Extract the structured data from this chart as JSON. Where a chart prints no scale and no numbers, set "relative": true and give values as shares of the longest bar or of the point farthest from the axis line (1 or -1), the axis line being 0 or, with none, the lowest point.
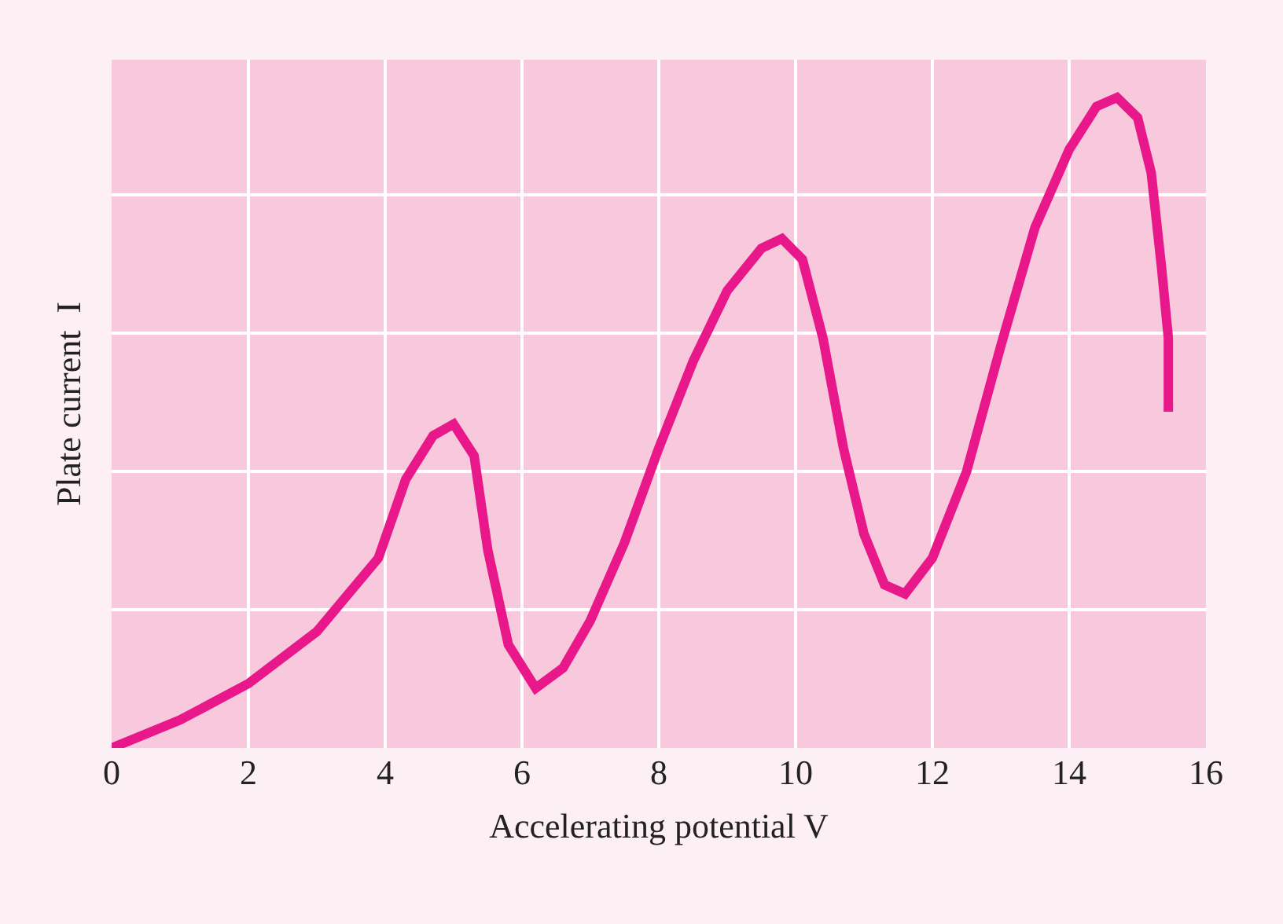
{
  "chart_data": {
    "type": "line",
    "xlabel": "Accelerating potential V",
    "ylabel": "Plate current  I",
    "relative": true,
    "grid": true,
    "xlim": [
      0,
      16
    ],
    "xticks": [
      0,
      2,
      4,
      6,
      8,
      10,
      12,
      14,
      16
    ],
    "series": [
      {
        "color": "#e8178a",
        "x": [
          0,
          1,
          2,
          3,
          3.9,
          4.3,
          4.7,
          5.0,
          5.3,
          5.5,
          5.8,
          6.2,
          6.6,
          7.0,
          7.5,
          8.0,
          8.5,
          9.0,
          9.5,
          9.8,
          10.1,
          10.4,
          10.7,
          11.0,
          11.3,
          11.6,
          12.0,
          12.5,
          13.0,
          13.5,
          14.0,
          14.4,
          14.7,
          15.0,
          15.2,
          15.35,
          15.45,
          15.45
        ],
        "values": [
          0,
          0.043,
          0.099,
          0.179,
          0.292,
          0.413,
          0.48,
          0.498,
          0.449,
          0.304,
          0.159,
          0.092,
          0.123,
          0.196,
          0.316,
          0.461,
          0.594,
          0.703,
          0.768,
          0.783,
          0.751,
          0.63,
          0.461,
          0.329,
          0.251,
          0.237,
          0.292,
          0.425,
          0.618,
          0.8,
          0.92,
          0.986,
          1,
          0.969,
          0.884,
          0.739,
          0.63,
          0.517
        ]
      }
    ]
  }
}
